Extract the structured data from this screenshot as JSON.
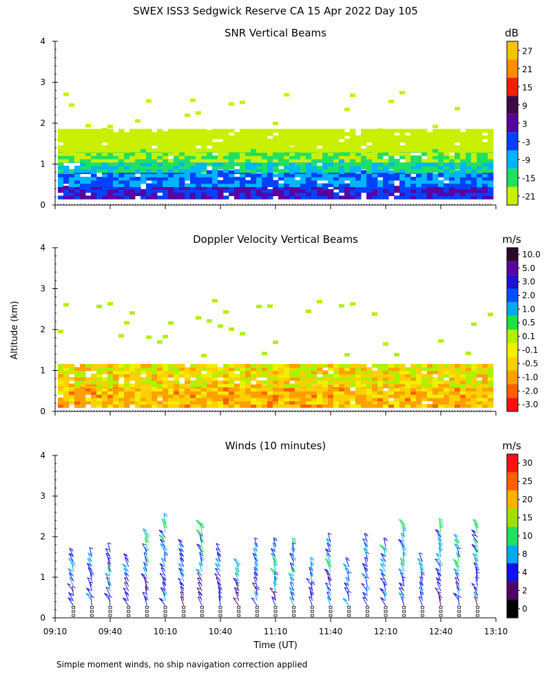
{
  "title": "SWEX ISS3 Sedgwick Reserve CA  15 Apr 2022 Day 105",
  "footnote": "Simple moment winds, no ship navigation correction applied",
  "ylabel": "Altitude (km)",
  "xlabel": "Time (UT)",
  "x_ticks": [
    "09:10",
    "09:40",
    "10:10",
    "10:40",
    "11:10",
    "11:40",
    "12:10",
    "12:40",
    "13:10"
  ],
  "y_ticks": [
    "0",
    "1",
    "2",
    "3",
    "4"
  ],
  "panels": [
    {
      "title": "SNR Vertical Beams",
      "unit": "dB",
      "colorbar": {
        "labels": [
          "27",
          "21",
          "15",
          "9",
          "3",
          "-3",
          "-9",
          "-15",
          "-21"
        ],
        "colors": [
          "#f5c400",
          "#ff8c00",
          "#f02000",
          "#3c0a46",
          "#5a00a0",
          "#0040ff",
          "#00b4ff",
          "#20e060",
          "#c8f000"
        ]
      }
    },
    {
      "title": "Doppler Velocity Vertical Beams",
      "unit": "m/s",
      "colorbar": {
        "labels": [
          "10.0",
          "5.0",
          "3.0",
          "2.0",
          "1.0",
          "0.5",
          "0.1",
          "-0.1",
          "-0.5",
          "-1.0",
          "-2.0",
          "-3.0"
        ],
        "colors": [
          "#2a0a2a",
          "#5a00a0",
          "#2010d0",
          "#0050ff",
          "#00aaf0",
          "#20e040",
          "#b0f000",
          "#f0f000",
          "#ffd000",
          "#ffa000",
          "#ff6000",
          "#ff1010"
        ]
      }
    },
    {
      "title": "Winds (10 minutes)",
      "unit": "m/s",
      "colorbar": {
        "labels": [
          "30",
          "25",
          "20",
          "15",
          "10",
          "8",
          "4",
          "2",
          "0"
        ],
        "colors": [
          "#ff1010",
          "#ff6000",
          "#ffb000",
          "#a0e000",
          "#20e060",
          "#00aaf0",
          "#1010f0",
          "#50006a",
          "#000000"
        ]
      }
    }
  ],
  "chart_data": [
    {
      "type": "heatmap",
      "title": "SNR Vertical Beams",
      "quantity": "SNR (dB)",
      "x_range": [
        "09:10",
        "13:10"
      ],
      "ylim": [
        0,
        4
      ],
      "color_levels": [
        -21,
        -15,
        -9,
        -3,
        3,
        9,
        15,
        21,
        27
      ],
      "layers": [
        {
          "altitude_km": [
            0.15,
            0.45
          ],
          "snr_db": 3
        },
        {
          "altitude_km": [
            0.45,
            0.8
          ],
          "snr_db": -3
        },
        {
          "altitude_km": [
            0.8,
            1.05
          ],
          "snr_db": -9
        },
        {
          "altitude_km": [
            1.05,
            1.3
          ],
          "snr_db": -15
        },
        {
          "altitude_km": [
            1.3,
            1.8
          ],
          "snr_db": -21
        }
      ]
    },
    {
      "type": "heatmap",
      "title": "Doppler Velocity Vertical Beams",
      "quantity": "Doppler velocity (m/s)",
      "x_range": [
        "09:10",
        "13:10"
      ],
      "ylim": [
        0,
        4
      ],
      "color_levels": [
        -3.0,
        -2.0,
        -1.0,
        -0.5,
        -0.1,
        0.1,
        0.5,
        1.0,
        2.0,
        3.0,
        5.0,
        10.0
      ],
      "layers": [
        {
          "altitude_km": [
            0.1,
            0.6
          ],
          "velocity_ms": -0.5
        },
        {
          "altitude_km": [
            0.6,
            1.1
          ],
          "velocity_ms": -0.1
        }
      ]
    },
    {
      "type": "scatter",
      "title": "Winds (10 minutes)",
      "quantity": "wind barbs (m/s)",
      "x_range": [
        "09:10",
        "13:10"
      ],
      "ylim": [
        0,
        4
      ],
      "profile_times": [
        "09:20",
        "09:30",
        "09:40",
        "09:50",
        "10:00",
        "10:10",
        "10:20",
        "10:30",
        "10:40",
        "10:50",
        "11:00",
        "11:10",
        "11:20",
        "11:30",
        "11:40",
        "11:50",
        "12:00",
        "12:10",
        "12:20",
        "12:30",
        "12:40",
        "12:50",
        "13:00"
      ],
      "typical_speed_ms": {
        "below_1km": 6,
        "1_to_2km": 8,
        "2_to_3km": 12
      }
    }
  ]
}
